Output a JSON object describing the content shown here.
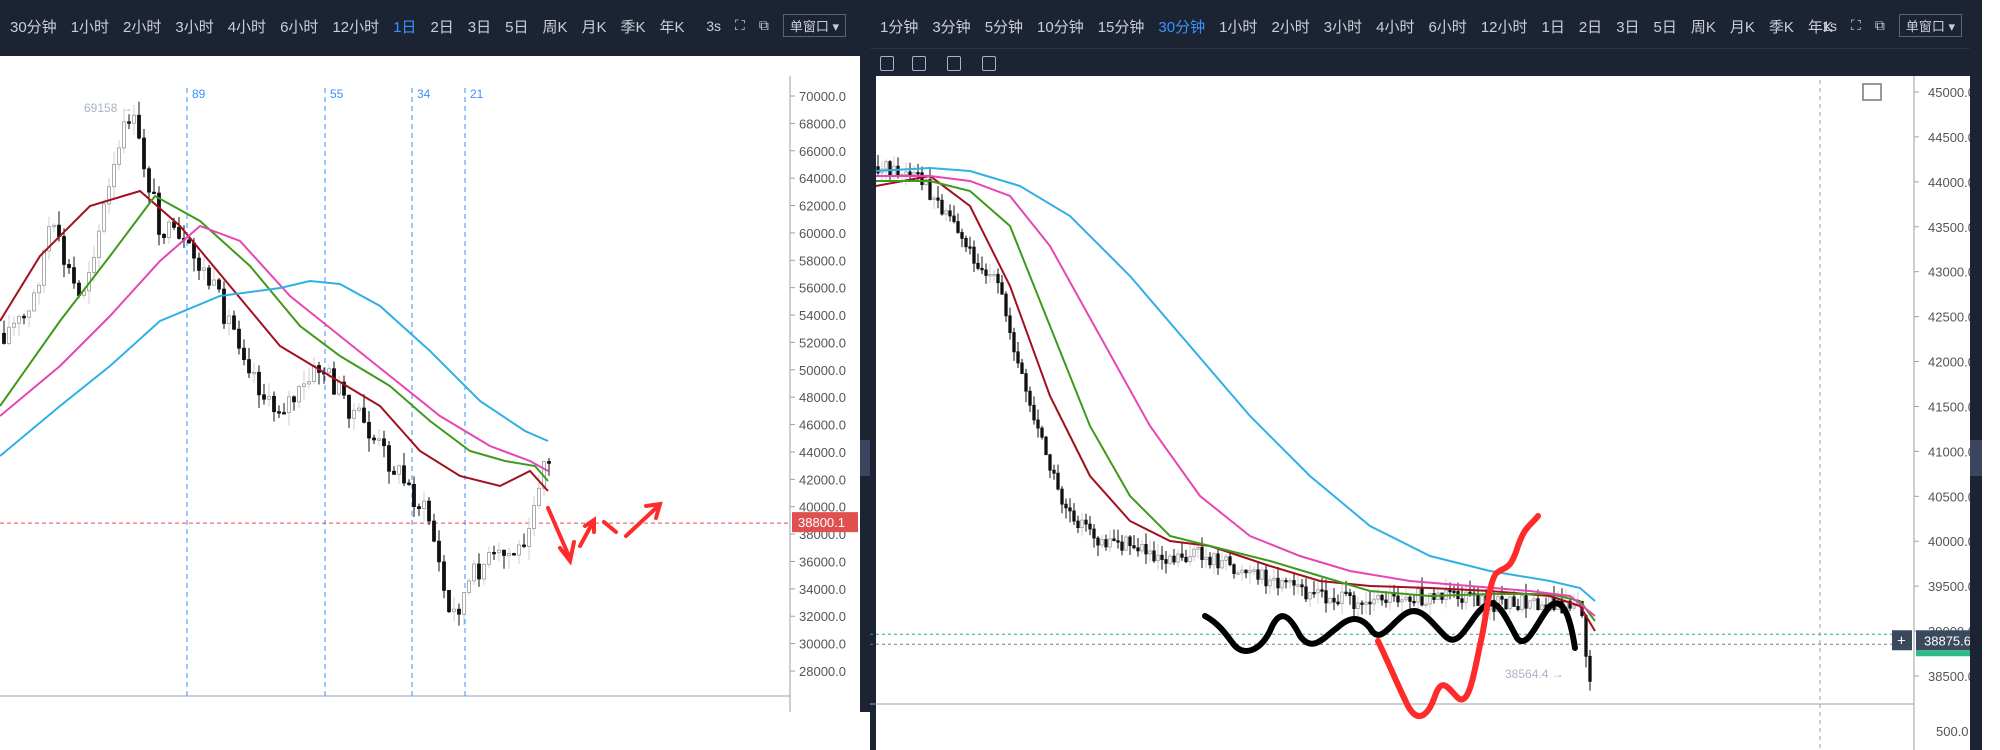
{
  "left_panel": {
    "intervals": [
      "30分钟",
      "1小时",
      "2小时",
      "3小时",
      "4小时",
      "6小时",
      "12小时",
      "1日",
      "2日",
      "3日",
      "5日",
      "周K",
      "月K",
      "季K",
      "年K"
    ],
    "active_interval": "1日",
    "refresh": "3s",
    "window_button": "单窗口",
    "price_axis": [
      "70000.0",
      "68000.0",
      "66000.0",
      "64000.0",
      "62000.0",
      "60000.0",
      "58000.0",
      "56000.0",
      "54000.0",
      "52000.0",
      "50000.0",
      "48000.0",
      "46000.0",
      "44000.0",
      "42000.0",
      "40000.0",
      "38000.0",
      "36000.0",
      "34000.0",
      "32000.0",
      "30000.0",
      "28000.0"
    ],
    "current_price": "38800.1",
    "high_label": "69158",
    "fib_labels": [
      "89",
      "55",
      "34",
      "21"
    ]
  },
  "right_panel": {
    "intervals": [
      "1分钟",
      "3分钟",
      "5分钟",
      "10分钟",
      "15分钟",
      "30分钟",
      "1小时",
      "2小时",
      "3小时",
      "4小时",
      "6小时",
      "12小时",
      "1日",
      "2日",
      "3日",
      "5日",
      "周K",
      "月K",
      "季K",
      "年K"
    ],
    "active_interval": "30分钟",
    "refresh": "1s",
    "window_button": "单窗口",
    "price_axis": [
      "45000.0",
      "44500.0",
      "44000.0",
      "43500.0",
      "43000.0",
      "42500.0",
      "42000.0",
      "41500.0",
      "41000.0",
      "40500.0",
      "40000.0",
      "39500.0",
      "39000.0",
      "38500.0"
    ],
    "bottom_axis_label": "500.0",
    "current_price": "38875.6",
    "low_label": "38564.4",
    "crosshair_symbol": "+"
  },
  "colors": {
    "toolbar_bg": "#1c2434",
    "active": "#3b91ff",
    "up_candle": "#d9d9d9",
    "ma_dark_red": "#a30f1f",
    "ma_green": "#3d9a1a",
    "ma_pink": "#e645b4",
    "ma_blue": "#2fb0e6",
    "price_tag": "#e0504f",
    "drawing_red": "#ff2a2a",
    "drawing_black": "#000000"
  }
}
